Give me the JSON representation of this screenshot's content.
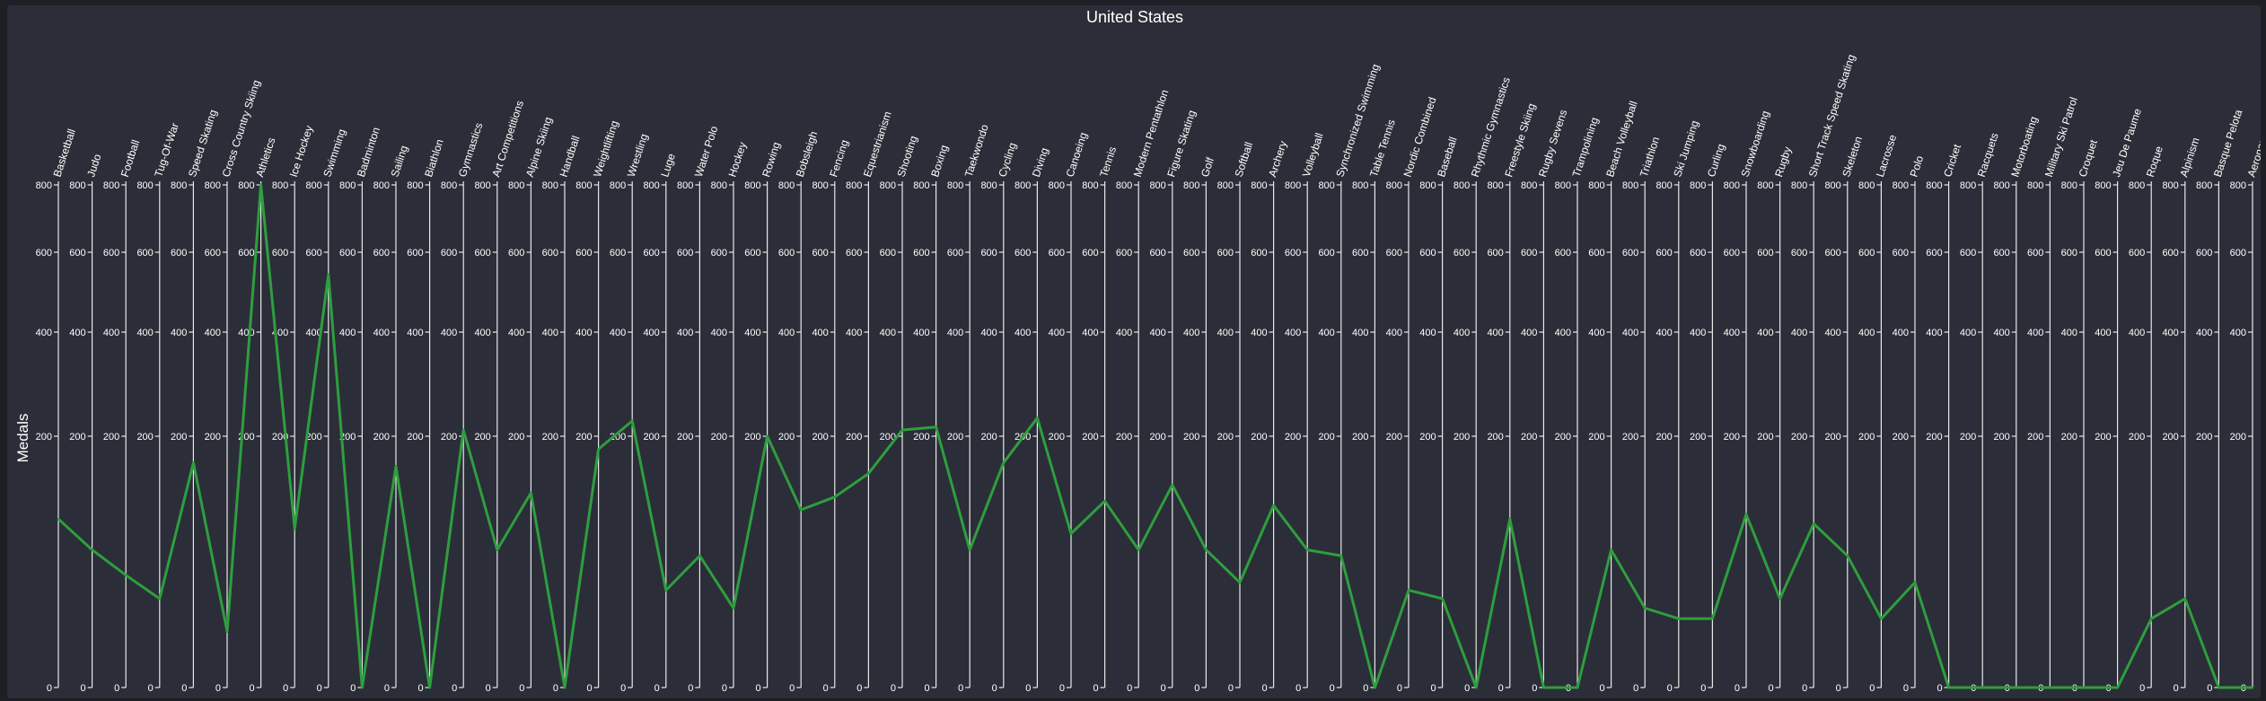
{
  "chart_data": {
    "type": "line",
    "title": "United States",
    "ylabel": "Medals",
    "ylim": [
      0,
      800
    ],
    "yscale": "sqrt",
    "yticks": [
      0,
      200,
      400,
      600,
      800
    ],
    "grid": false,
    "line_color": "#2e9e3e",
    "categories": [
      "Basketball",
      "Judo",
      "Football",
      "Tug-Of-War",
      "Speed Skating",
      "Cross Country Skiing",
      "Athletics",
      "Ice Hockey",
      "Swimming",
      "Badminton",
      "Sailing",
      "Biathlon",
      "Gymnastics",
      "Art Competitions",
      "Alpine Skiing",
      "Handball",
      "Weightlifting",
      "Wrestling",
      "Luge",
      "Water Polo",
      "Hockey",
      "Rowing",
      "Bobsleigh",
      "Fencing",
      "Equestrianism",
      "Shooting",
      "Boxing",
      "Taekwondo",
      "Cycling",
      "Diving",
      "Canoeing",
      "Tennis",
      "Modern Pentathlon",
      "Figure Skating",
      "Golf",
      "Softball",
      "Archery",
      "Volleyball",
      "Synchronized Swimming",
      "Table Tennis",
      "Nordic Combined",
      "Baseball",
      "Rhythmic Gymnastics",
      "Freestyle Skiing",
      "Rugby Sevens",
      "Trampolining",
      "Beach Volleyball",
      "Triathlon",
      "Ski Jumping",
      "Curling",
      "Snowboarding",
      "Rugby",
      "Short Track Speed Skating",
      "Skeleton",
      "Lacrosse",
      "Polo",
      "Cricket",
      "Racquets",
      "Motorboating",
      "Military Ski Patrol",
      "Croquet",
      "Jeu De Paume",
      "Roque",
      "Alpinism",
      "Basque Pelota",
      "Aeronautics"
    ],
    "values": [
      90,
      60,
      40,
      25,
      160,
      10,
      800,
      80,
      540,
      0,
      155,
      0,
      210,
      60,
      120,
      0,
      180,
      225,
      30,
      55,
      20,
      200,
      100,
      115,
      145,
      210,
      215,
      60,
      160,
      230,
      75,
      110,
      60,
      130,
      60,
      35,
      105,
      60,
      55,
      0,
      30,
      25,
      0,
      90,
      0,
      0,
      60,
      20,
      15,
      15,
      95,
      25,
      85,
      55,
      15,
      35,
      0,
      0,
      0,
      0,
      0,
      0,
      15,
      25,
      0,
      0
    ]
  }
}
